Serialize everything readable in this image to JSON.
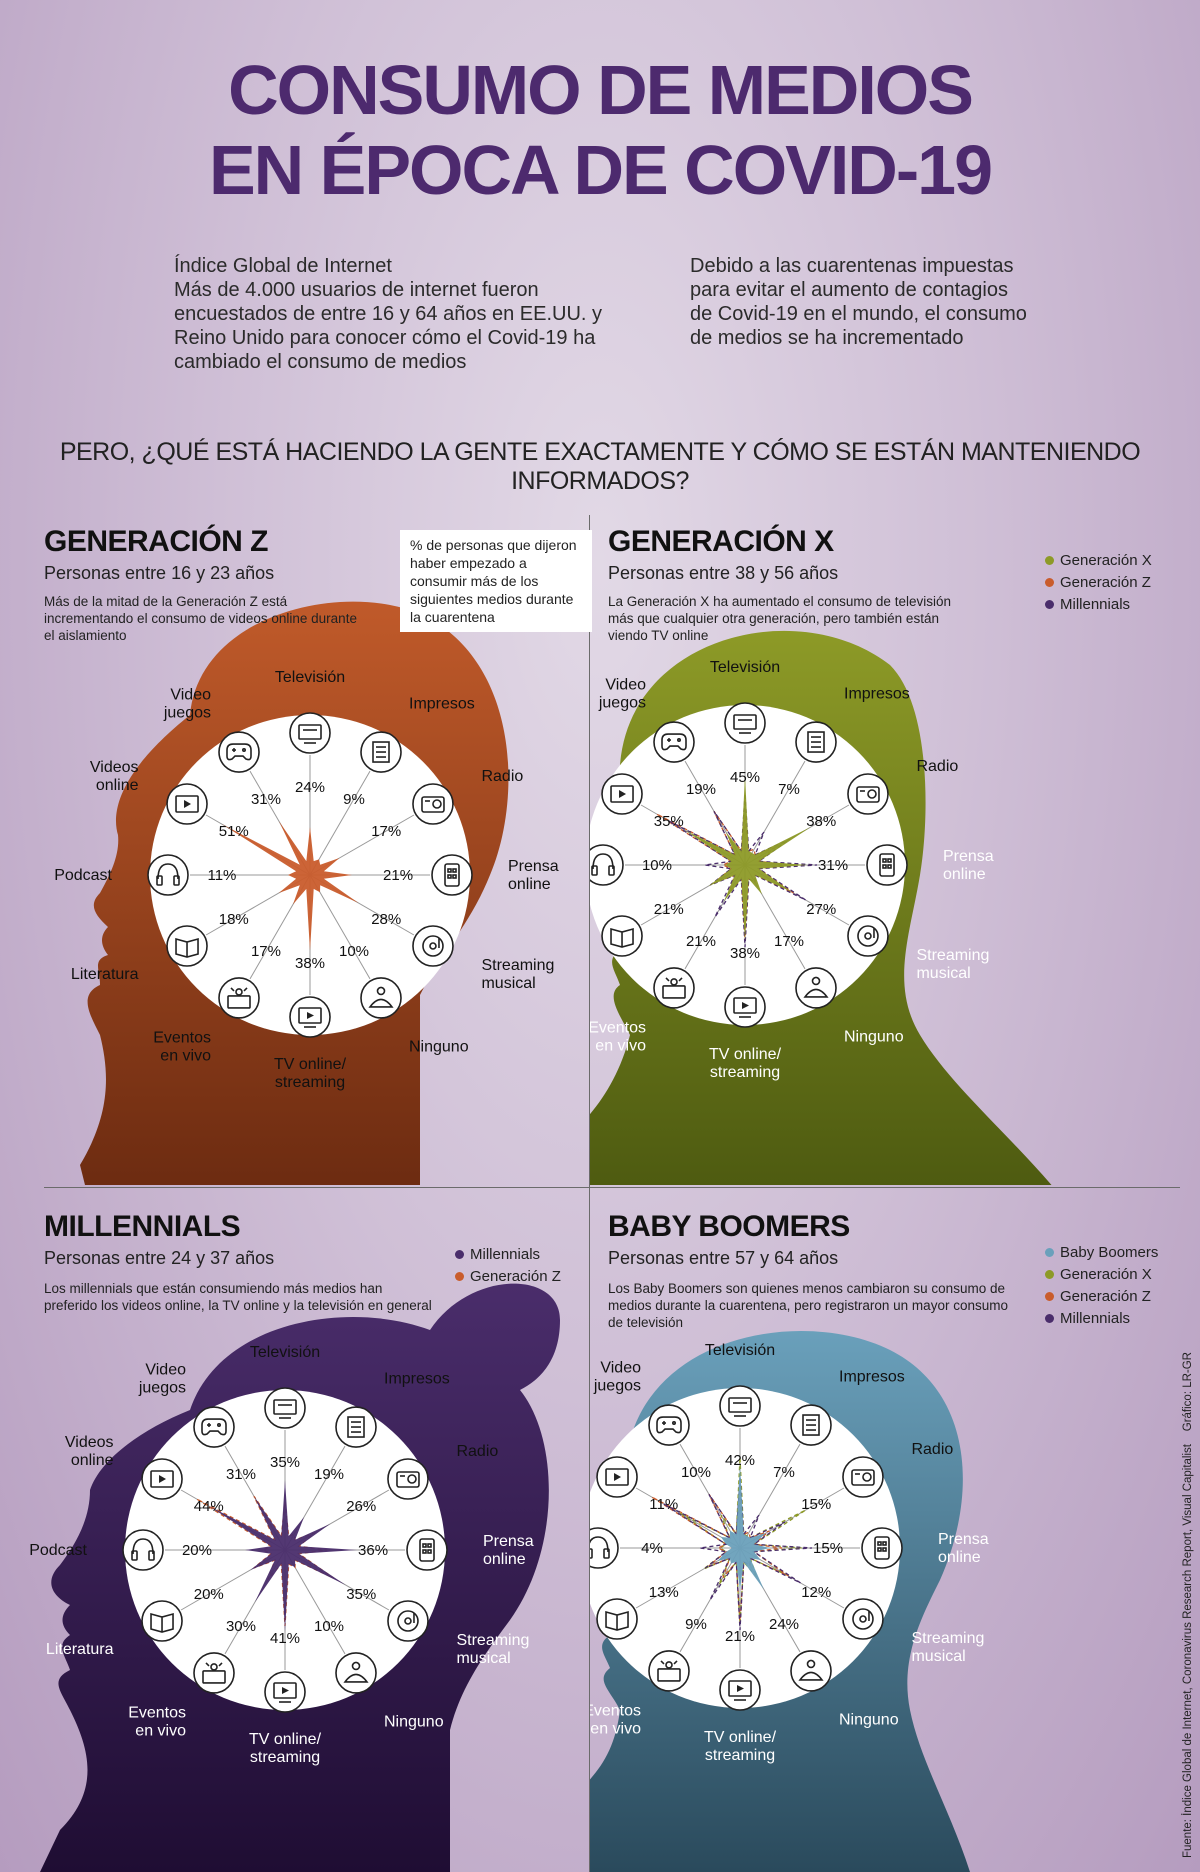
{
  "header": {
    "title_line1": "CONSUMO DE MEDIOS",
    "title_line2": "EN ÉPOCA DE COVID-19",
    "intro_left_title": "Índice Global de Internet",
    "intro_left_body": "Más de 4.000 usuarios de internet fueron encuestados de entre 16 y 64 años en EE.UU. y Reino Unido para conocer cómo el Covid-19 ha cambiado el consumo de medios",
    "intro_right_body": "Debido a las cuarentenas impuestas para evitar el aumento de contagios de Covid-19 en el mundo, el consumo de medios se ha incrementado",
    "question": "PERO, ¿QUÉ ESTÁ HACIENDO LA GENTE EXACTAMENTE Y CÓMO SE ESTÁN MANTENIENDO INFORMADOS?"
  },
  "callout": "% de personas que dijeron haber empezado a consumir más de los siguientes medios durante la cuarentena",
  "source": "Fuente: Índice Global de Internet, Coronavirus Research Report, Visual Capitalist",
  "credit": "Gráfico: LR-GR",
  "colors": {
    "genz": "#c95c2c",
    "genx": "#8d9a27",
    "millennials": "#4a2d6b",
    "boomers": "#6aa0bb"
  },
  "categories": [
    "Televisión",
    "Impresos",
    "Radio",
    "Prensa online",
    "Streaming musical",
    "Ninguno",
    "TV online/ streaming",
    "Eventos en vivo",
    "Literatura",
    "Podcast",
    "Videos online",
    "Video juegos"
  ],
  "icons": [
    "tv-icon",
    "newspaper-icon",
    "radio-icon",
    "mobile-icon",
    "music-icon",
    "meditation-icon",
    "streaming-icon",
    "live-event-icon",
    "book-icon",
    "headphones-icon",
    "video-icon",
    "gamepad-icon"
  ],
  "panels": [
    {
      "id": "genz",
      "title": "GENERACIÓN Z",
      "subtitle": "Personas entre 16 y 23 años",
      "description": "Más de la mitad de la Generación Z está incrementando el consumo de videos online durante el aislamiento",
      "legend": [],
      "values": [
        "24%",
        "9%",
        "17%",
        "21%",
        "28%",
        "10%",
        "38%",
        "17%",
        "18%",
        "11%",
        "51%",
        "31%"
      ]
    },
    {
      "id": "genx",
      "title": "GENERACIÓN X",
      "subtitle": "Personas entre 38 y 56 años",
      "description": "La Generación X ha aumentado el consumo de televisión más que cualquier otra generación, pero también están viendo TV online",
      "legend": [
        {
          "label": "Generación X",
          "color": "#8d9a27"
        },
        {
          "label": "Generación Z",
          "color": "#c95c2c"
        },
        {
          "label": "Millennials",
          "color": "#4a2d6b"
        }
      ],
      "values": [
        "45%",
        "7%",
        "38%",
        "31%",
        "27%",
        "17%",
        "38%",
        "21%",
        "21%",
        "10%",
        "35%",
        "19%"
      ]
    },
    {
      "id": "millennials",
      "title": "MILLENNIALS",
      "subtitle": "Personas entre 24 y 37 años",
      "description": "Los millennials que están consumiendo más medios han preferido los videos online, la TV online y la televisión en general",
      "legend": [
        {
          "label": "Millennials",
          "color": "#4a2d6b"
        },
        {
          "label": "Generación Z",
          "color": "#c95c2c"
        }
      ],
      "values": [
        "35%",
        "19%",
        "26%",
        "36%",
        "35%",
        "10%",
        "41%",
        "30%",
        "20%",
        "20%",
        "44%",
        "31%"
      ]
    },
    {
      "id": "boomers",
      "title": "BABY BOOMERS",
      "subtitle": "Personas entre 57 y 64 años",
      "description": "Los Baby Boomers son quienes menos cambiaron su consumo de medios durante la cuarentena, pero registraron un mayor consumo de televisión",
      "legend": [
        {
          "label": "Baby Boomers",
          "color": "#6aa0bb"
        },
        {
          "label": "Generación X",
          "color": "#8d9a27"
        },
        {
          "label": "Generación Z",
          "color": "#c95c2c"
        },
        {
          "label": "Millennials",
          "color": "#4a2d6b"
        }
      ],
      "values": [
        "42%",
        "7%",
        "15%",
        "15%",
        "12%",
        "24%",
        "21%",
        "9%",
        "13%",
        "4%",
        "11%",
        "10%"
      ]
    }
  ]
}
